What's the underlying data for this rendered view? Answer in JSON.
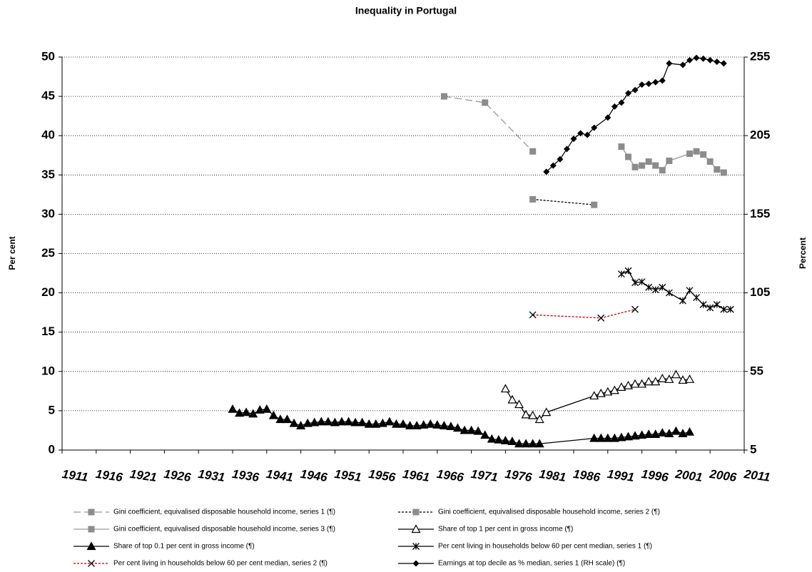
{
  "chart_data": {
    "type": "line",
    "title": "Inequality in Portugal",
    "y_label": "Per cent",
    "y2_label": "Percent",
    "xlim": [
      1911,
      2011
    ],
    "xticks": [
      1911,
      1916,
      1921,
      1926,
      1931,
      1936,
      1941,
      1946,
      1951,
      1956,
      1961,
      1966,
      1971,
      1976,
      1981,
      1986,
      1991,
      1996,
      2001,
      2006,
      2011
    ],
    "ylim": [
      0,
      50
    ],
    "yticks": [
      0,
      5,
      10,
      15,
      20,
      25,
      30,
      35,
      40,
      45,
      50
    ],
    "y2lim": [
      5,
      255
    ],
    "y2ticks": [
      5,
      55,
      105,
      155,
      205,
      255
    ],
    "grid": true,
    "legend": "bottom",
    "series": [
      {
        "name": "Gini coefficient,  equivalised disposable household income, series 1 (¶)",
        "color": "#999999",
        "marker_color": "#8c8c8c",
        "marker": "square",
        "dash": "dashed",
        "x": [
          1967,
          1973,
          1980
        ],
        "values": [
          45,
          44.2,
          38
        ]
      },
      {
        "name": "Gini coefficient,  equivalised disposable household income, series 2 (¶)",
        "color": "#000000",
        "marker_color": "#8c8c8c",
        "marker": "square",
        "dash": "dotted",
        "x": [
          1980,
          1989
        ],
        "values": [
          31.9,
          31.2
        ]
      },
      {
        "name": "Gini coefficient,  equivalised disposable household income, series 3 (¶)",
        "color": "#999999",
        "marker_color": "#8c8c8c",
        "marker": "square",
        "dash": "solid",
        "x": [
          1993,
          1994,
          1995,
          1996,
          1997,
          1998,
          1999,
          2000,
          2003,
          2004,
          2005,
          2006,
          2007,
          2008
        ],
        "values": [
          38.6,
          37.3,
          36.0,
          36.2,
          36.7,
          36.2,
          35.6,
          36.8,
          37.7,
          38.0,
          37.6,
          36.7,
          35.7,
          35.3
        ]
      },
      {
        "name": "Share of top 1 per cent in gross income (¶)",
        "color": "#000000",
        "marker_color": "#000000",
        "marker": "open-triangle",
        "dash": "solid",
        "x": [
          1976,
          1977,
          1978,
          1979,
          1980,
          1981,
          1982,
          1989,
          1990,
          1991,
          1992,
          1993,
          1994,
          1995,
          1996,
          1997,
          1998,
          1999,
          2000,
          2001,
          2002,
          2003
        ],
        "values": [
          7.8,
          6.4,
          5.8,
          4.5,
          4.4,
          3.9,
          4.8,
          6.9,
          7.2,
          7.4,
          7.6,
          8.0,
          8.2,
          8.4,
          8.4,
          8.7,
          8.7,
          9.1,
          9.0,
          9.6,
          8.9,
          9.0
        ]
      },
      {
        "name": "Share of top 0.1 per cent in gross income (¶)",
        "color": "#000000",
        "marker_color": "#000000",
        "marker": "triangle",
        "dash": "solid",
        "x": [
          1936,
          1937,
          1938,
          1939,
          1940,
          1941,
          1942,
          1943,
          1944,
          1945,
          1946,
          1947,
          1948,
          1949,
          1950,
          1951,
          1952,
          1953,
          1954,
          1955,
          1956,
          1957,
          1958,
          1959,
          1960,
          1961,
          1962,
          1963,
          1964,
          1965,
          1966,
          1967,
          1968,
          1969,
          1970,
          1971,
          1972,
          1973,
          1974,
          1975,
          1976,
          1977,
          1978,
          1979,
          1980,
          1981,
          1989,
          1990,
          1991,
          1992,
          1993,
          1994,
          1995,
          1996,
          1997,
          1998,
          1999,
          2000,
          2001,
          2002,
          2003
        ],
        "values": [
          5.2,
          4.7,
          4.8,
          4.6,
          5.1,
          5.2,
          4.4,
          3.9,
          3.9,
          3.4,
          3.1,
          3.4,
          3.5,
          3.6,
          3.6,
          3.5,
          3.6,
          3.6,
          3.5,
          3.5,
          3.3,
          3.3,
          3.4,
          3.6,
          3.3,
          3.3,
          3.1,
          3.1,
          3.2,
          3.3,
          3.2,
          3.1,
          3.0,
          2.8,
          2.5,
          2.5,
          2.4,
          1.9,
          1.4,
          1.3,
          1.2,
          1.1,
          0.8,
          0.8,
          0.8,
          0.8,
          1.5,
          1.5,
          1.5,
          1.5,
          1.6,
          1.7,
          1.8,
          1.9,
          2.0,
          2.0,
          2.2,
          2.1,
          2.4,
          2.1,
          2.3
        ]
      },
      {
        "name": "Per cent living in households below 60 per cent median, series 1 (¶)",
        "color": "#000000",
        "marker_color": "#000000",
        "marker": "asterisk",
        "dash": "solid",
        "x": [
          1993,
          1994,
          1995,
          1996,
          1997,
          1998,
          1999,
          2000,
          2002,
          2003,
          2004,
          2005,
          2006,
          2007,
          2008,
          2009
        ],
        "values": [
          22.4,
          22.8,
          21.3,
          21.4,
          20.7,
          20.4,
          20.7,
          20.0,
          19.0,
          20.3,
          19.4,
          18.5,
          18.1,
          18.5,
          17.9,
          17.9
        ]
      },
      {
        "name": "Per cent living in households below 60 per cent median, series 2 (¶)",
        "color": "#c00000",
        "marker_color": "#000000",
        "marker": "cross",
        "dash": "dotted",
        "x": [
          1980,
          1990,
          1995
        ],
        "values": [
          17.2,
          16.8,
          17.9
        ]
      },
      {
        "name": "Earnings at top decile as % median, series 1 (RH scale) (¶)",
        "color": "#000000",
        "marker_color": "#000000",
        "marker": "diamond",
        "dash": "solid",
        "axis": "y2",
        "x": [
          1982,
          1983,
          1984,
          1985,
          1986,
          1987,
          1988,
          1989,
          1991,
          1992,
          1993,
          1994,
          1995,
          1996,
          1997,
          1998,
          1999,
          2000,
          2002,
          2003,
          2004,
          2005,
          2006,
          2007,
          2008
        ],
        "values": [
          182,
          186,
          190,
          196.5,
          203,
          206.5,
          205.5,
          210,
          216.5,
          223.5,
          226,
          232,
          234,
          237.5,
          238,
          239,
          240,
          251,
          250,
          253,
          254.5,
          254,
          253,
          252,
          251
        ]
      }
    ]
  }
}
